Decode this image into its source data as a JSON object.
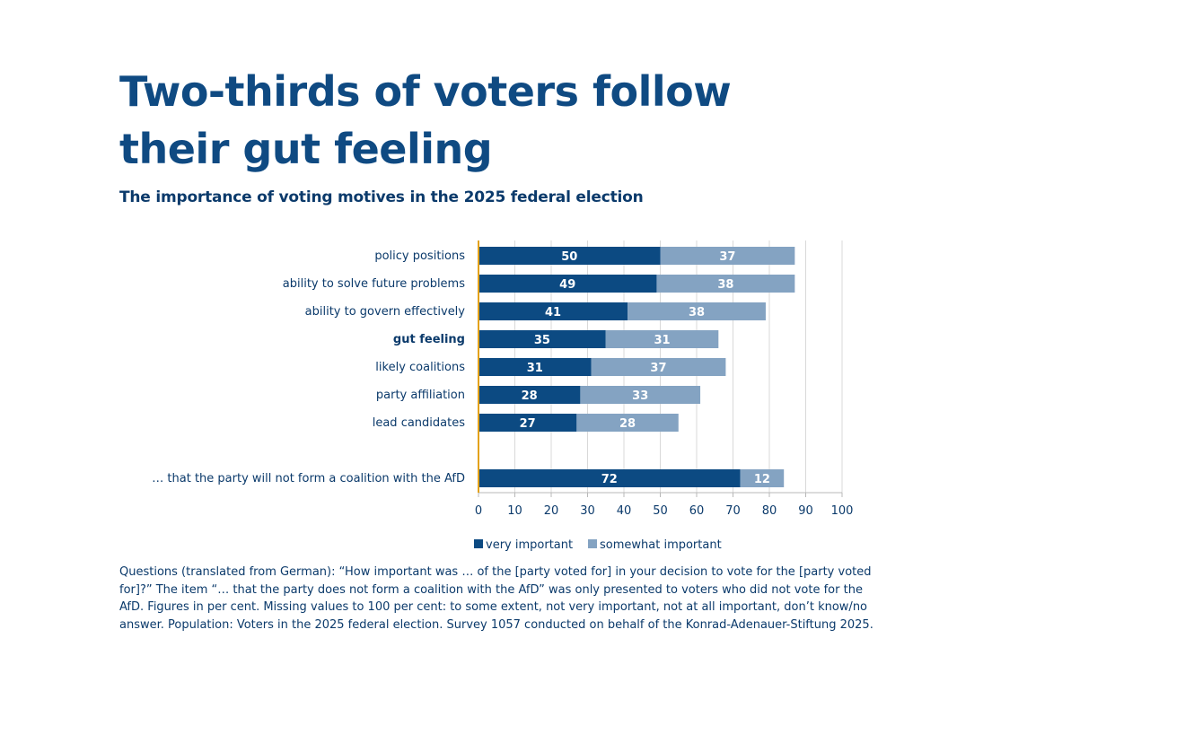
{
  "title": "Two-thirds of voters follow their gut feeling",
  "subtitle": "The importance of voting motives in the 2025 federal election",
  "note": "Questions (translated from German): “How important was … of the [party voted for] in your decision to vote for the [party voted for]?” The item “… that the party does not form a coalition with the AfD” was only presented to voters who did not vote for the AfD. Figures in per cent. Missing values to 100 per cent: to some extent, not very important, not at all important, don’t know/no answer. Population: Voters in the 2025 federal election. Survey 1057 conducted on behalf of the Konrad-Adenauer-Stiftung 2025.",
  "colors": {
    "very": "#0c4a82",
    "somewhat": "#84a3c2",
    "axis": "#e3a21a",
    "grid": "#d9d9d9",
    "text": "#0b3a6b"
  },
  "chart_data": {
    "type": "bar",
    "orientation": "horizontal",
    "stacked": true,
    "categories": [
      "policy positions",
      "ability to solve future problems",
      "ability to govern effectively",
      "gut feeling",
      "likely coalitions",
      "party affiliation",
      "lead candidates",
      "… that the party will not form a coalition with the AfD"
    ],
    "bold_category": "gut feeling",
    "gap_before_last": true,
    "series": [
      {
        "name": "very important",
        "values": [
          50,
          49,
          41,
          35,
          31,
          28,
          27,
          72
        ]
      },
      {
        "name": "somewhat important",
        "values": [
          37,
          38,
          38,
          31,
          37,
          33,
          28,
          12
        ]
      }
    ],
    "xlim": [
      0,
      100
    ],
    "xticks": [
      0,
      10,
      20,
      30,
      40,
      50,
      60,
      70,
      80,
      90,
      100
    ],
    "grid": true,
    "legend_position": "bottom"
  }
}
